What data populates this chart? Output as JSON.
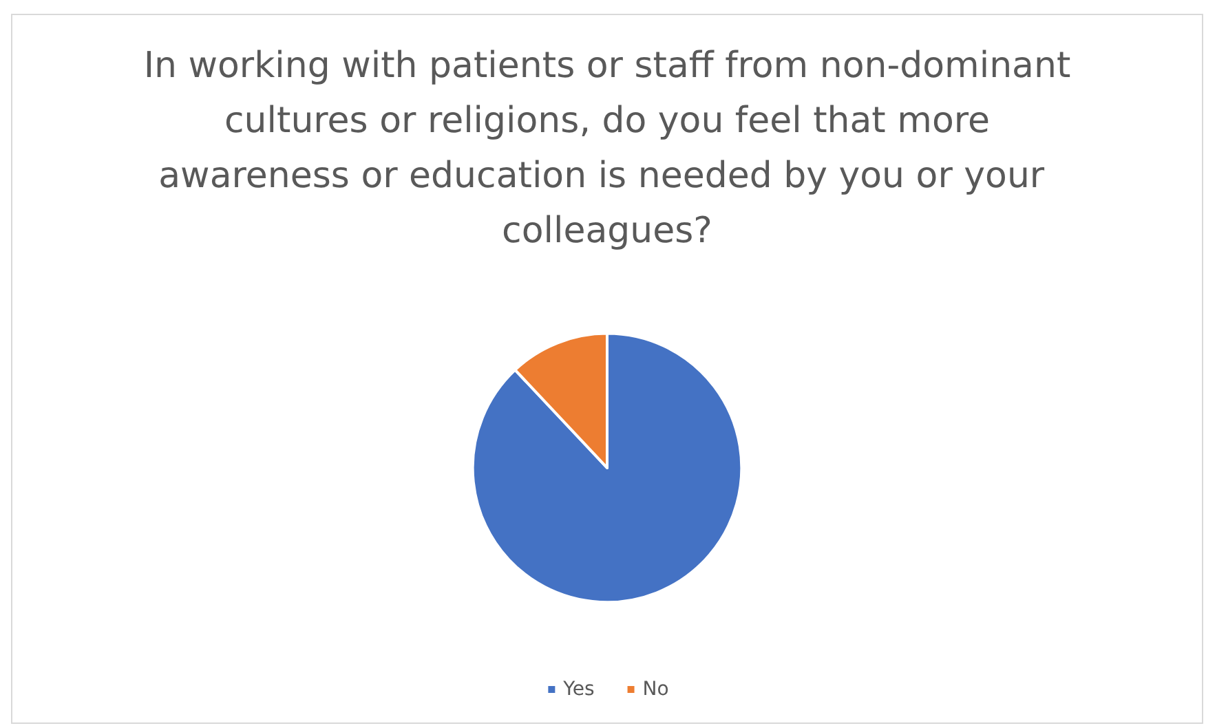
{
  "chart_data": {
    "type": "pie",
    "title": "In working with patients or staff from non-dominant cultures or religions, do you feel that more awareness or education is needed by you or your colleagues?",
    "categories": [
      "Yes",
      "No"
    ],
    "values": [
      88,
      12
    ],
    "colors": [
      "#4472c4",
      "#ed7d31"
    ],
    "legend": "bottom"
  }
}
